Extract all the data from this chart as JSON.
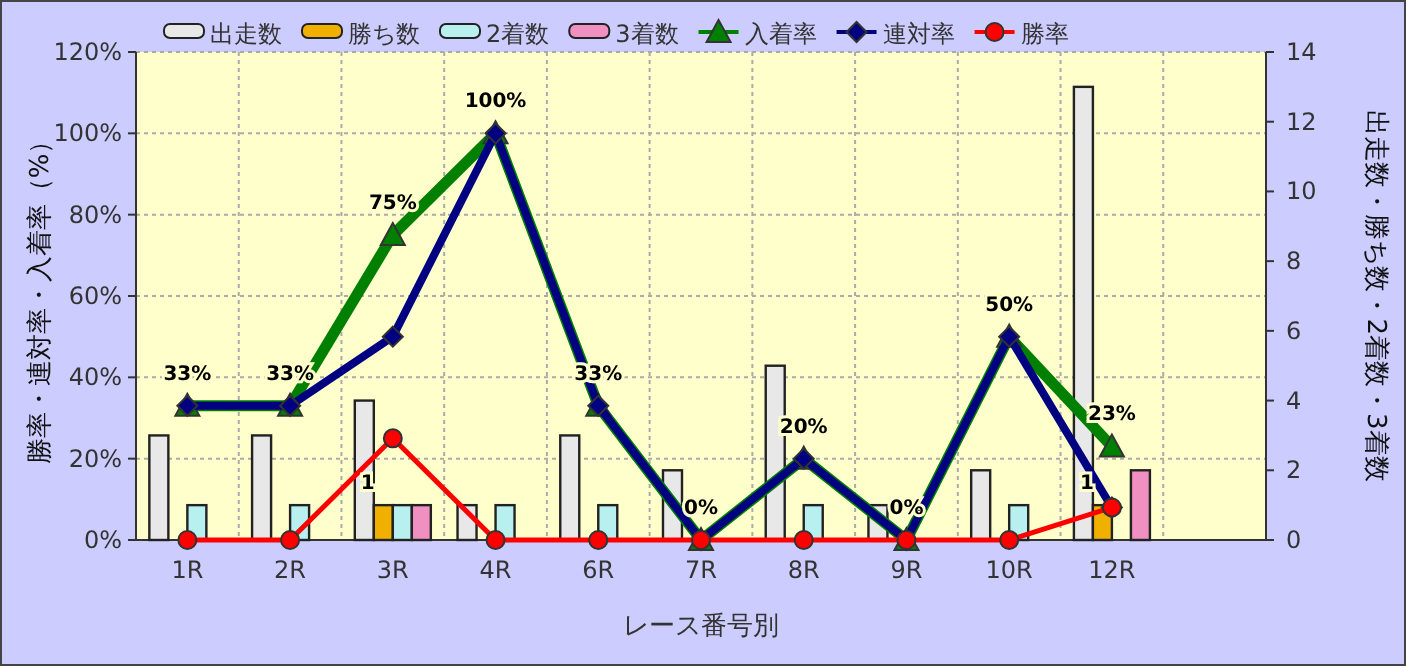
{
  "chart_data": {
    "type": "bar",
    "xlabel": "レース番号別",
    "ylabel": "勝率・連対率・入着率（%）",
    "y2label": "出走数・勝ち数・2着数・3着数",
    "categories": [
      "1R",
      "2R",
      "3R",
      "4R",
      "6R",
      "7R",
      "8R",
      "9R",
      "10R",
      "12R",
      null
    ],
    "ylim": [
      0,
      120
    ],
    "yticks": [
      {
        "value": 0,
        "label": "0%"
      },
      {
        "value": 20,
        "label": "20%"
      },
      {
        "value": 40,
        "label": "40%"
      },
      {
        "value": 60,
        "label": "60%"
      },
      {
        "value": 80,
        "label": "80%"
      },
      {
        "value": 100,
        "label": "100%"
      },
      {
        "value": 120,
        "label": "120%"
      }
    ],
    "y2lim": [
      0,
      14
    ],
    "y2ticks": [
      0,
      2,
      4,
      6,
      8,
      10,
      12,
      14
    ],
    "grid": true,
    "legend": "top",
    "series": [
      {
        "name": "出走数",
        "axis": "y2",
        "color": "#e8e8e8",
        "values": [
          3,
          3,
          4,
          1,
          3,
          2,
          5,
          1,
          2,
          13,
          null
        ]
      },
      {
        "name": "勝ち数",
        "axis": "y2",
        "color": "#f0b000",
        "values": [
          0,
          0,
          1,
          0,
          0,
          0,
          0,
          0,
          0,
          1,
          null
        ],
        "value_labels": [
          null,
          null,
          "1",
          null,
          null,
          null,
          null,
          null,
          null,
          "1",
          null
        ]
      },
      {
        "name": "2着数",
        "axis": "y2",
        "color": "#b8f0f0",
        "values": [
          1,
          1,
          1,
          1,
          1,
          0,
          1,
          0,
          1,
          0,
          null
        ]
      },
      {
        "name": "3着数",
        "axis": "y2",
        "color": "#f090c0",
        "values": [
          0,
          0,
          1,
          0,
          0,
          0,
          0,
          0,
          0,
          2,
          null
        ]
      },
      {
        "name": "入着率",
        "type": "line",
        "color": "#008000",
        "marker": "triangle",
        "values": [
          33,
          33,
          75,
          100,
          33,
          0,
          20,
          0,
          50,
          23,
          null
        ],
        "value_labels": [
          "33%",
          "33%",
          "75%",
          "100%",
          "33%",
          "0%",
          "20%",
          "0%",
          "50%",
          "23%",
          null
        ]
      },
      {
        "name": "連対率",
        "type": "line",
        "color": "#000080",
        "marker": "diamond",
        "values": [
          33,
          33,
          50,
          100,
          33,
          0,
          20,
          0,
          50,
          8,
          null
        ]
      },
      {
        "name": "勝率",
        "type": "line",
        "color": "#ff0000",
        "marker": "circle",
        "values": [
          0,
          0,
          25,
          0,
          0,
          0,
          0,
          0,
          0,
          8,
          null
        ]
      }
    ]
  }
}
